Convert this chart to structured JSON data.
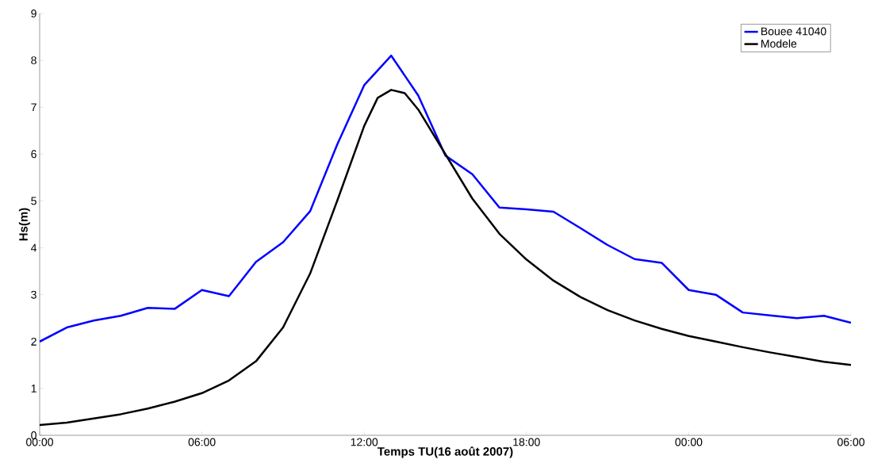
{
  "chart_data": {
    "type": "line",
    "xlabel": "Temps TU(16 août 2007)",
    "ylabel": "Hs(m)",
    "xlim": [
      "2007-08-16T00:00",
      "2007-08-17T06:00"
    ],
    "ylim": [
      0,
      9
    ],
    "xticks": [
      {
        "value": "2007-08-16T00:00",
        "label": "00:00"
      },
      {
        "value": "2007-08-16T06:00",
        "label": "06:00"
      },
      {
        "value": "2007-08-16T12:00",
        "label": "12:00"
      },
      {
        "value": "2007-08-16T18:00",
        "label": "18:00"
      },
      {
        "value": "2007-08-17T00:00",
        "label": "00:00"
      },
      {
        "value": "2007-08-17T06:00",
        "label": "06:00"
      }
    ],
    "yticks": [
      0,
      1,
      2,
      3,
      4,
      5,
      6,
      7,
      8,
      9
    ],
    "grid": false,
    "legend": "top right",
    "marker": "none",
    "line_style": "solid",
    "series": [
      {
        "name": "Bouee 41040",
        "color": "#0000ff",
        "x": [
          "2007-08-16T00:00",
          "2007-08-16T01:00",
          "2007-08-16T02:00",
          "2007-08-16T03:00",
          "2007-08-16T04:00",
          "2007-08-16T05:00",
          "2007-08-16T06:00",
          "2007-08-16T07:00",
          "2007-08-16T08:00",
          "2007-08-16T09:00",
          "2007-08-16T10:00",
          "2007-08-16T11:00",
          "2007-08-16T12:00",
          "2007-08-16T13:00",
          "2007-08-16T14:00",
          "2007-08-16T15:00",
          "2007-08-16T16:00",
          "2007-08-16T17:00",
          "2007-08-16T18:00",
          "2007-08-16T19:00",
          "2007-08-16T20:00",
          "2007-08-16T21:00",
          "2007-08-16T22:00",
          "2007-08-16T23:00",
          "2007-08-17T00:00",
          "2007-08-17T01:00",
          "2007-08-17T02:00",
          "2007-08-17T03:00",
          "2007-08-17T04:00",
          "2007-08-17T05:00",
          "2007-08-17T06:00"
        ],
        "values": [
          2.0,
          2.3,
          2.45,
          2.55,
          2.72,
          2.7,
          3.1,
          2.97,
          3.7,
          4.12,
          4.78,
          6.2,
          7.47,
          8.1,
          7.25,
          5.97,
          5.57,
          4.86,
          4.82,
          4.77,
          4.42,
          4.06,
          3.76,
          3.68,
          3.1,
          3.0,
          2.62,
          2.56,
          2.5,
          2.55,
          2.4
        ]
      },
      {
        "name": "Modele",
        "color": "#000000",
        "x": [
          "2007-08-16T00:00",
          "2007-08-16T01:00",
          "2007-08-16T02:00",
          "2007-08-16T03:00",
          "2007-08-16T04:00",
          "2007-08-16T05:00",
          "2007-08-16T06:00",
          "2007-08-16T07:00",
          "2007-08-16T08:00",
          "2007-08-16T09:00",
          "2007-08-16T10:00",
          "2007-08-16T11:00",
          "2007-08-16T12:00",
          "2007-08-16T12:30",
          "2007-08-16T13:00",
          "2007-08-16T13:30",
          "2007-08-16T14:00",
          "2007-08-16T15:00",
          "2007-08-16T16:00",
          "2007-08-16T17:00",
          "2007-08-16T18:00",
          "2007-08-16T19:00",
          "2007-08-16T20:00",
          "2007-08-16T21:00",
          "2007-08-16T22:00",
          "2007-08-16T23:00",
          "2007-08-17T00:00",
          "2007-08-17T01:00",
          "2007-08-17T02:00",
          "2007-08-17T03:00",
          "2007-08-17T04:00",
          "2007-08-17T05:00",
          "2007-08-17T06:00"
        ],
        "values": [
          0.22,
          0.27,
          0.36,
          0.45,
          0.57,
          0.72,
          0.9,
          1.17,
          1.58,
          2.3,
          3.45,
          5.0,
          6.6,
          7.2,
          7.37,
          7.3,
          6.95,
          6.0,
          5.05,
          4.3,
          3.75,
          3.3,
          2.95,
          2.67,
          2.45,
          2.27,
          2.12,
          2.0,
          1.88,
          1.77,
          1.67,
          1.57,
          1.5
        ]
      }
    ]
  }
}
